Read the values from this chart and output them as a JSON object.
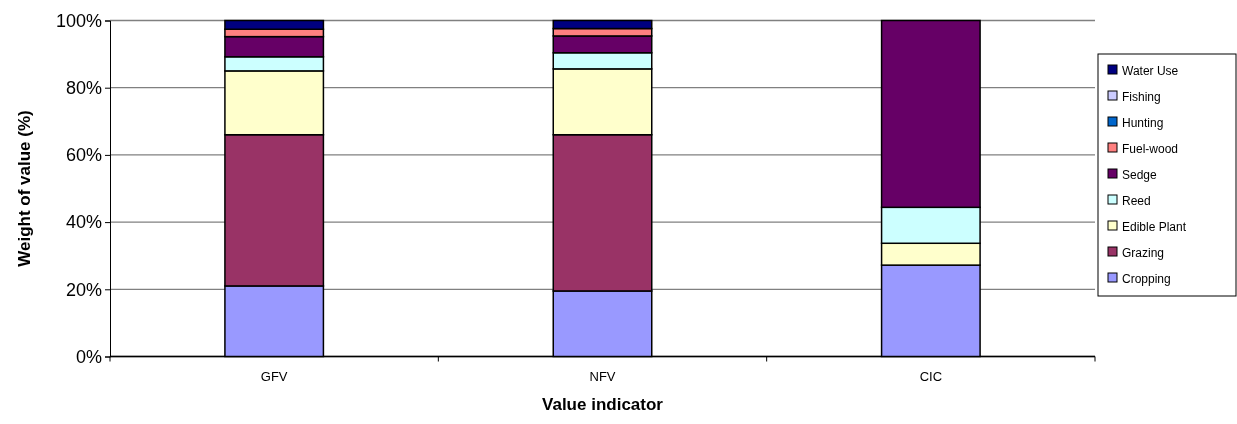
{
  "chart_data": {
    "type": "bar",
    "stacked": true,
    "xlabel": "Value indicator",
    "ylabel": "Weight of value (%)",
    "categories": [
      "GFV",
      "NFV",
      "CIC"
    ],
    "ylim": [
      0,
      100
    ],
    "yticks": [
      {
        "value": 0,
        "label": "0%"
      },
      {
        "value": 20,
        "label": "20%"
      },
      {
        "value": 40,
        "label": "40%"
      },
      {
        "value": 60,
        "label": "60%"
      },
      {
        "value": 80,
        "label": "80%"
      },
      {
        "value": 100,
        "label": "100%"
      }
    ],
    "grid": "y",
    "legend": "right",
    "series": [
      {
        "name": "Cropping",
        "color": "#9999ff",
        "values": [
          21,
          19.5,
          27.2
        ]
      },
      {
        "name": "Grazing",
        "color": "#993366",
        "values": [
          45,
          46.5,
          0
        ]
      },
      {
        "name": "Edible Plant",
        "color": "#ffffcc",
        "values": [
          19,
          19.6,
          6.5
        ]
      },
      {
        "name": "Reed",
        "color": "#ccffff",
        "values": [
          4.2,
          4.8,
          10.7
        ]
      },
      {
        "name": "Sedge",
        "color": "#660066",
        "values": [
          6,
          5,
          55.6
        ]
      },
      {
        "name": "Fuel-wood",
        "color": "#ff8080",
        "values": [
          2.2,
          2.2,
          0
        ]
      },
      {
        "name": "Hunting",
        "color": "#0066cc",
        "values": [
          null,
          null,
          0
        ]
      },
      {
        "name": "Fishing",
        "color": "#ccccff",
        "values": [
          null,
          null,
          0
        ]
      },
      {
        "name": "Water Use",
        "color": "#000080",
        "values": [
          2.6,
          2.4,
          0
        ]
      }
    ]
  }
}
